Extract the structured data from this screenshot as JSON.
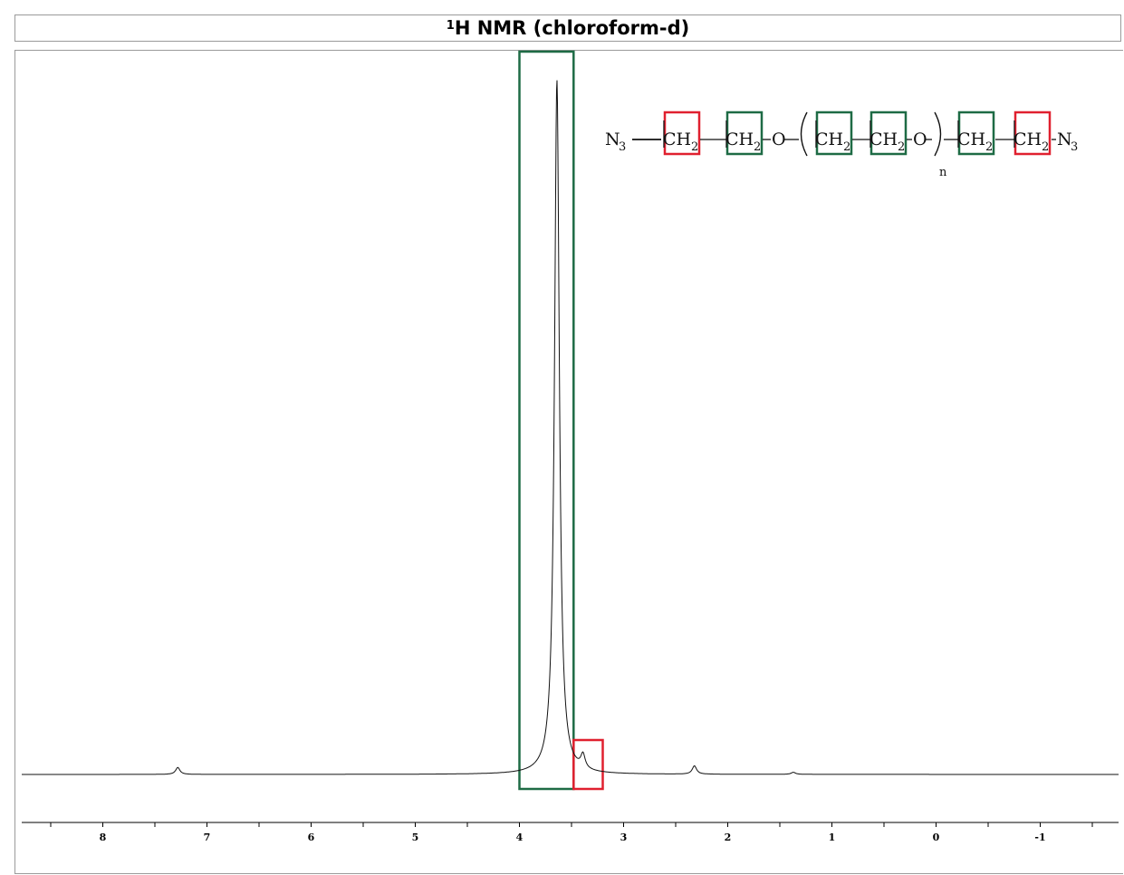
{
  "chart_data": {
    "type": "line",
    "title_main": "H NMR (chloroform-d)",
    "title_sup": "1",
    "xlabel": "",
    "ylabel": "",
    "xlim": [
      8.7,
      -1.75
    ],
    "x_ticks": [
      "8",
      "7",
      "6",
      "5",
      "4",
      "3",
      "2",
      "1",
      "0",
      "-1"
    ],
    "peaks": [
      {
        "ppm": 7.28,
        "rel_height": 0.01
      },
      {
        "ppm": 3.64,
        "rel_height": 1.0
      },
      {
        "ppm": 3.39,
        "rel_height": 0.02
      },
      {
        "ppm": 2.32,
        "rel_height": 0.012
      },
      {
        "ppm": 1.37,
        "rel_height": 0.003
      }
    ],
    "highlight_regions": [
      {
        "from": 4.0,
        "to": 3.48,
        "color": "#1e6b45",
        "label": "green"
      },
      {
        "from": 3.48,
        "to": 3.2,
        "color": "#e0202f",
        "label": "red"
      }
    ]
  },
  "formula": {
    "n3_left": "N",
    "n3_right": "N",
    "n3_sub": "3",
    "ch2": "CH",
    "ch2_sub": "2",
    "oxygen": "O",
    "repeat": "n"
  },
  "colors": {
    "green_box": "#1e6b45",
    "red_box": "#e0202f"
  }
}
